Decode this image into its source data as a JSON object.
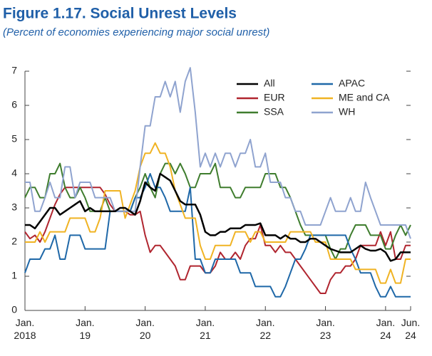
{
  "chart_data": {
    "type": "line",
    "title": "Figure 1.17.  Social Unrest Levels",
    "subtitle": "(Percent of economies experiencing major social unrest)",
    "categories": [
      "Jan.\n2018",
      null,
      null,
      null,
      null,
      null,
      null,
      null,
      null,
      null,
      null,
      null,
      "Jan.\n19",
      null,
      null,
      null,
      null,
      null,
      null,
      null,
      null,
      null,
      null,
      null,
      "Jan.\n20",
      null,
      null,
      null,
      null,
      null,
      null,
      null,
      null,
      null,
      null,
      null,
      "Jan.\n21",
      null,
      null,
      null,
      null,
      null,
      null,
      null,
      null,
      null,
      null,
      null,
      "Jan.\n22",
      null,
      null,
      null,
      null,
      null,
      null,
      null,
      null,
      null,
      null,
      null,
      "Jan.\n23",
      null,
      null,
      null,
      null,
      null,
      null,
      null,
      null,
      null,
      null,
      null,
      "Jan.\n24",
      null,
      null,
      null,
      null,
      "Jun.\n24"
    ],
    "ylim": [
      0,
      7
    ],
    "yticks": [
      0,
      1,
      2,
      3,
      4,
      5,
      6,
      7
    ],
    "series": [
      {
        "name": "All",
        "color": "#000000",
        "values": [
          2.5,
          2.5,
          2.4,
          2.6,
          2.8,
          3.0,
          3.0,
          2.8,
          2.9,
          3.0,
          3.1,
          3.2,
          2.9,
          3.0,
          2.9,
          2.9,
          2.9,
          2.9,
          2.9,
          3.0,
          3.0,
          2.9,
          2.8,
          3.2,
          3.75,
          3.6,
          3.5,
          4.0,
          3.9,
          3.8,
          3.5,
          3.2,
          3.1,
          3.1,
          3.1,
          2.8,
          2.3,
          2.2,
          2.2,
          2.3,
          2.3,
          2.4,
          2.4,
          2.4,
          2.5,
          2.5,
          2.5,
          2.55,
          2.2,
          2.2,
          2.2,
          2.1,
          2.2,
          2.1,
          2.1,
          2.0,
          2.0,
          2.1,
          2.1,
          2.0,
          1.9,
          1.8,
          1.75,
          1.7,
          1.7,
          1.7,
          1.8,
          1.9,
          1.8,
          1.75,
          1.75,
          1.8,
          1.7,
          1.45,
          1.5,
          1.7,
          1.7,
          1.7
        ]
      },
      {
        "name": "EUR",
        "color": "#b0252f",
        "values": [
          2.3,
          2.1,
          2.2,
          2.0,
          2.3,
          2.7,
          3.1,
          3.4,
          3.6,
          3.6,
          3.6,
          3.6,
          3.6,
          3.6,
          3.6,
          3.6,
          3.4,
          3.1,
          2.9,
          2.9,
          2.9,
          2.8,
          2.8,
          2.9,
          2.2,
          1.7,
          1.9,
          1.9,
          1.7,
          1.5,
          1.3,
          0.9,
          0.9,
          1.3,
          1.3,
          1.3,
          1.1,
          1.1,
          1.3,
          1.7,
          1.5,
          1.5,
          1.7,
          1.5,
          1.9,
          2.1,
          2.1,
          2.5,
          1.9,
          1.9,
          1.7,
          1.9,
          1.7,
          1.7,
          1.5,
          1.3,
          1.1,
          0.9,
          0.7,
          0.5,
          0.5,
          0.9,
          1.1,
          1.1,
          1.3,
          1.3,
          1.5,
          1.9,
          1.9,
          1.9,
          1.9,
          2.3,
          1.9,
          2.3,
          1.5,
          1.5,
          1.9,
          1.9
        ]
      },
      {
        "name": "SSA",
        "color": "#3f7d2e",
        "values": [
          3.3,
          3.6,
          3.6,
          3.3,
          3.3,
          4.0,
          4.0,
          4.3,
          3.6,
          3.3,
          3.3,
          3.6,
          3.3,
          2.9,
          2.9,
          2.9,
          3.3,
          2.9,
          2.9,
          2.9,
          2.9,
          2.9,
          3.3,
          3.6,
          4.0,
          3.6,
          3.3,
          4.0,
          4.3,
          4.3,
          4.0,
          4.3,
          4.0,
          3.6,
          3.6,
          4.0,
          4.0,
          4.0,
          4.3,
          3.6,
          3.6,
          3.6,
          3.3,
          3.3,
          3.6,
          3.6,
          3.6,
          3.6,
          4.0,
          4.0,
          4.0,
          3.6,
          3.6,
          3.3,
          2.9,
          2.5,
          2.2,
          2.2,
          2.2,
          2.2,
          2.2,
          1.8,
          1.5,
          1.8,
          1.8,
          2.2,
          2.5,
          2.5,
          2.5,
          2.2,
          2.2,
          2.2,
          1.8,
          1.8,
          2.2,
          2.5,
          2.2,
          2.5
        ]
      },
      {
        "name": "APAC",
        "color": "#1f68a8",
        "values": [
          1.1,
          1.5,
          1.5,
          1.5,
          1.8,
          1.8,
          2.2,
          1.5,
          1.5,
          2.2,
          2.2,
          2.2,
          1.8,
          1.8,
          1.8,
          1.8,
          1.8,
          2.9,
          2.9,
          2.9,
          2.9,
          2.9,
          3.3,
          3.3,
          3.6,
          4.0,
          3.6,
          3.6,
          3.3,
          2.9,
          2.9,
          2.9,
          2.9,
          3.6,
          1.5,
          1.5,
          1.1,
          1.1,
          1.5,
          1.5,
          1.5,
          1.5,
          1.5,
          1.1,
          1.1,
          1.1,
          0.7,
          0.7,
          0.7,
          0.7,
          0.4,
          0.4,
          0.7,
          1.1,
          1.5,
          1.5,
          1.8,
          2.2,
          2.2,
          2.2,
          2.2,
          2.2,
          2.2,
          2.2,
          2.2,
          1.8,
          1.5,
          1.1,
          1.1,
          1.1,
          0.7,
          0.4,
          0.4,
          0.7,
          0.4,
          0.4,
          0.4,
          0.4
        ]
      },
      {
        "name": "ME and CA",
        "color": "#f0b323",
        "values": [
          2.0,
          2.0,
          2.0,
          2.3,
          2.0,
          2.3,
          2.3,
          2.3,
          2.3,
          2.7,
          2.7,
          2.7,
          2.7,
          2.3,
          2.3,
          2.7,
          3.5,
          3.5,
          3.5,
          3.5,
          2.7,
          3.1,
          3.5,
          4.2,
          4.6,
          4.6,
          4.9,
          4.6,
          4.6,
          4.2,
          3.5,
          3.1,
          2.7,
          2.7,
          2.7,
          1.9,
          1.5,
          1.5,
          1.9,
          1.9,
          1.9,
          1.9,
          2.3,
          2.3,
          2.3,
          2.0,
          2.3,
          2.3,
          2.0,
          2.0,
          2.0,
          2.0,
          2.0,
          2.3,
          2.3,
          2.3,
          2.3,
          2.3,
          2.0,
          2.0,
          2.0,
          1.5,
          1.5,
          1.5,
          1.5,
          1.5,
          1.2,
          1.2,
          1.2,
          1.2,
          1.2,
          0.8,
          0.8,
          1.2,
          0.8,
          0.8,
          1.5,
          1.5
        ]
      },
      {
        "name": "WH",
        "color": "#8fa3cf",
        "values": [
          3.75,
          3.75,
          2.9,
          2.9,
          3.3,
          3.75,
          3.3,
          3.3,
          4.2,
          4.2,
          3.3,
          3.75,
          3.75,
          3.75,
          3.3,
          3.3,
          3.3,
          3.3,
          2.9,
          2.9,
          2.9,
          2.9,
          2.9,
          4.2,
          5.4,
          5.4,
          6.25,
          6.25,
          6.7,
          6.25,
          6.7,
          5.8,
          6.7,
          7.1,
          5.8,
          4.2,
          4.6,
          4.2,
          4.6,
          4.2,
          4.6,
          4.6,
          4.2,
          4.6,
          4.6,
          5.0,
          4.2,
          4.2,
          4.6,
          3.75,
          3.75,
          3.75,
          3.3,
          3.3,
          2.9,
          2.9,
          2.5,
          2.5,
          2.5,
          2.5,
          2.9,
          3.3,
          2.9,
          2.9,
          2.9,
          3.3,
          2.9,
          2.9,
          3.75,
          3.3,
          2.9,
          2.5,
          2.5,
          2.5,
          2.5,
          2.5,
          2.5,
          2.1
        ]
      }
    ]
  }
}
